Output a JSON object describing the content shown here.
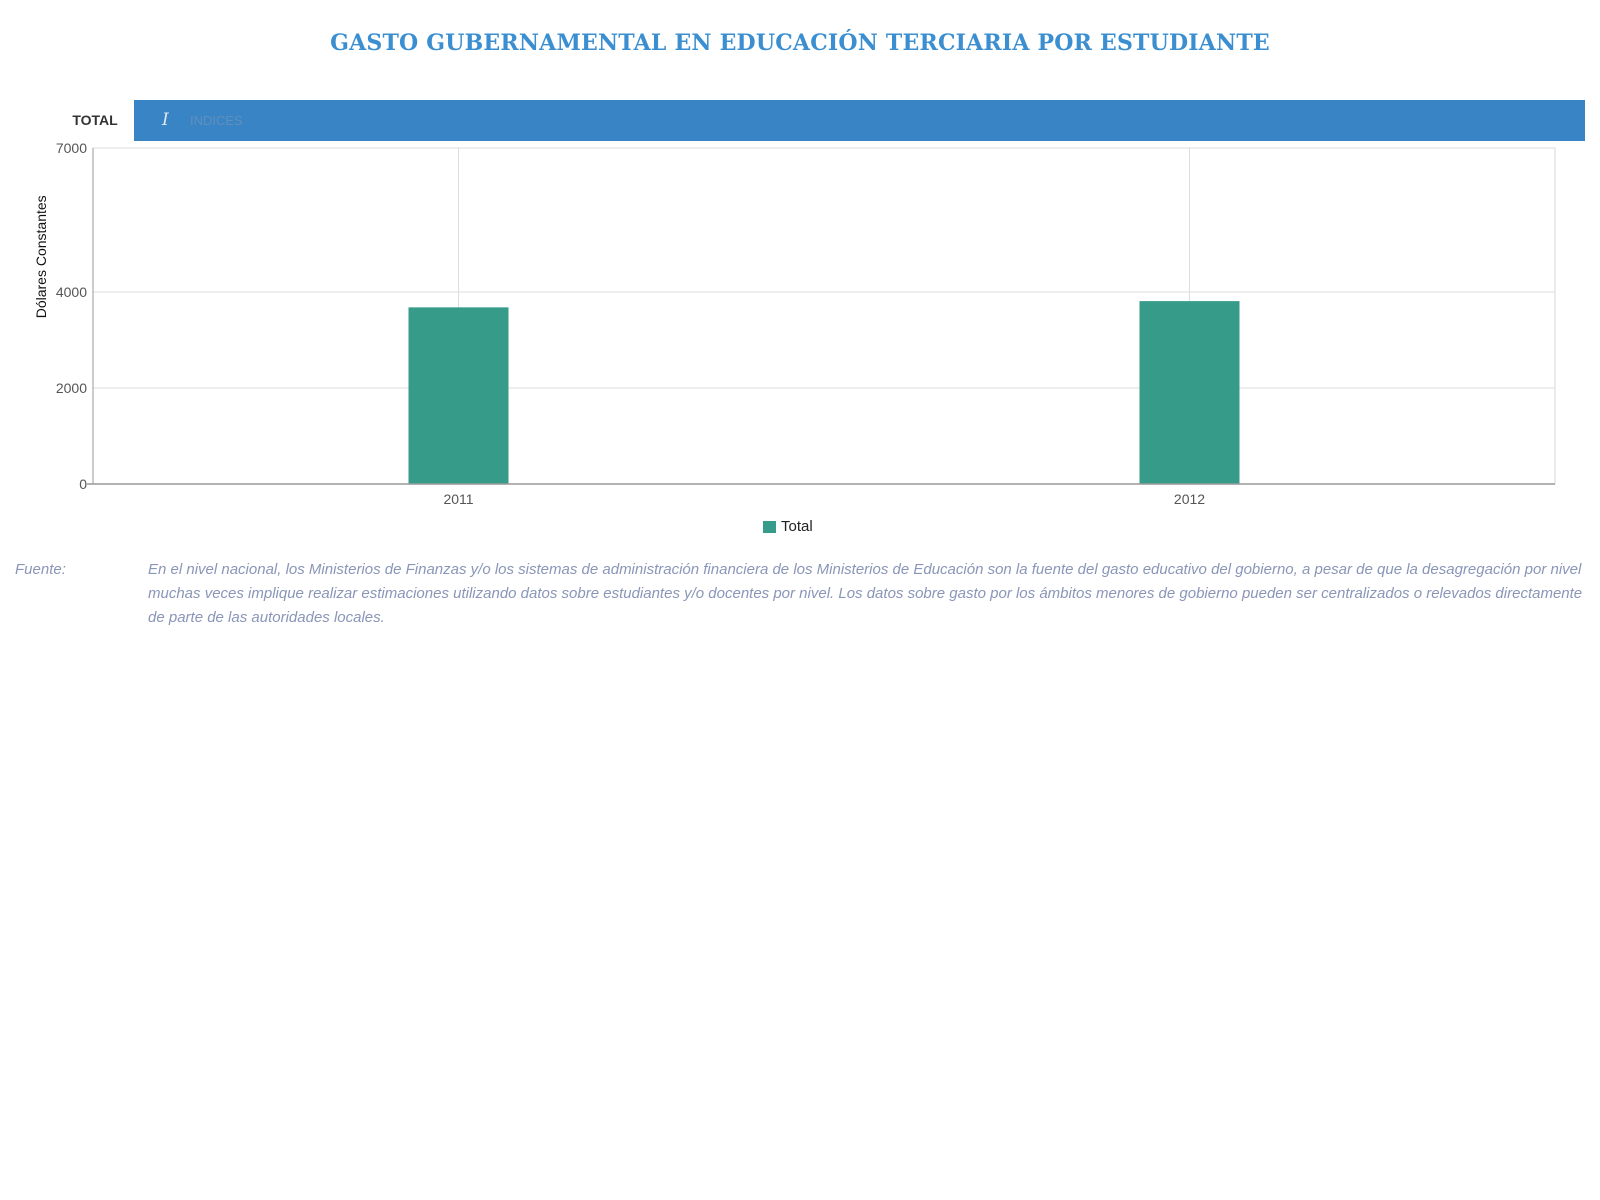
{
  "title": "GASTO GUBERNAMENTAL EN EDUCACIÓN TERCIARIA POR ESTUDIANTE",
  "tabs": {
    "total_label": "TOTAL",
    "active_label": "INDICES",
    "active_icon": "text-cursor-icon"
  },
  "chart_data": {
    "type": "bar",
    "title": "GASTO GUBERNAMENTAL EN EDUCACIÓN TERCIARIA POR ESTUDIANTE",
    "categories": [
      "2011",
      "2012"
    ],
    "series": [
      {
        "name": "Total",
        "values": [
          3680,
          3810
        ],
        "color": "#379b8a"
      }
    ],
    "xlabel": "",
    "ylabel": "Dólares Constantes",
    "ylim": [
      0,
      7000
    ],
    "yticks": [
      0,
      2000,
      4000,
      7000
    ],
    "ytick_labels": [
      "0",
      "2000",
      "4000",
      "7000"
    ],
    "grid": true,
    "legend": "bottom-center"
  },
  "legend": {
    "label": "Total",
    "color": "#379b8a"
  },
  "source": {
    "label": "Fuente:",
    "text": "En el nivel nacional, los Ministerios de Finanzas y/o los sistemas de administración financiera de los Ministerios de Educación son la fuente del gasto educativo del gobierno, a pesar de que la desagregación por nivel muchas veces implique realizar estimaciones utilizando datos sobre estudiantes y/o docentes por nivel. Los datos sobre gasto por los ámbitos menores de gobierno pueden ser centralizados o relevados directamente de parte de las autoridades locales."
  },
  "colors": {
    "title": "#3b8fd1",
    "tab_active": "#3984c4",
    "bar": "#379b8a",
    "source": "#8a96b8"
  }
}
